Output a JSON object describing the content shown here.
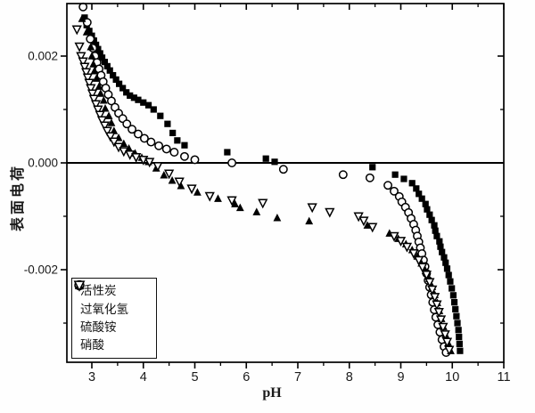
{
  "chart_data": {
    "type": "scatter",
    "title": "",
    "xlabel": "pH",
    "ylabel": "表面电荷",
    "xlim": [
      2.52,
      11.0
    ],
    "ylim": [
      -0.00373,
      0.00298
    ],
    "x_major_ticks": [
      3,
      4,
      5,
      6,
      7,
      8,
      9,
      10,
      11
    ],
    "x_minor_ticks": [
      3.5,
      4.5,
      5.5,
      6.5,
      7.5,
      8.5,
      9.5,
      10.5
    ],
    "y_major_ticks": [
      0.002,
      0.0,
      -0.002
    ],
    "y_major_tick_labels": [
      "0.002",
      "0.000",
      "-0.002"
    ],
    "y_minor_ticks": [
      0.001,
      -0.001,
      -0.003
    ],
    "grid": false,
    "zero_line": true,
    "legend_position": "lower-left",
    "marker_color": "#000000",
    "background_color": "#ffffff",
    "series": [
      {
        "id": "activated-carbon",
        "name": "活性炭",
        "marker": "square-filled",
        "points": [
          [
            2.86,
            0.00272
          ],
          [
            2.9,
            0.00258
          ],
          [
            2.95,
            0.00247
          ],
          [
            3.0,
            0.00238
          ],
          [
            3.04,
            0.00229
          ],
          [
            3.08,
            0.00221
          ],
          [
            3.12,
            0.00213
          ],
          [
            3.16,
            0.00205
          ],
          [
            3.2,
            0.00197
          ],
          [
            3.25,
            0.00189
          ],
          [
            3.3,
            0.00181
          ],
          [
            3.35,
            0.00173
          ],
          [
            3.41,
            0.00164
          ],
          [
            3.47,
            0.00156
          ],
          [
            3.53,
            0.00148
          ],
          [
            3.6,
            0.0014
          ],
          [
            3.67,
            0.00132
          ],
          [
            3.74,
            0.00126
          ],
          [
            3.82,
            0.00122
          ],
          [
            3.9,
            0.00118
          ],
          [
            4.0,
            0.00113
          ],
          [
            4.1,
            0.00108
          ],
          [
            4.2,
            0.001
          ],
          [
            4.33,
            0.00088
          ],
          [
            4.47,
            0.00073
          ],
          [
            4.57,
            0.00056
          ],
          [
            4.66,
            0.00042
          ],
          [
            4.8,
            0.00033
          ],
          [
            5.63,
            0.0002
          ],
          [
            6.38,
            8e-05
          ],
          [
            6.55,
            2e-05
          ],
          [
            8.45,
            -8e-05
          ],
          [
            8.89,
            -0.00022
          ],
          [
            9.06,
            -0.0003
          ],
          [
            9.22,
            -0.00038
          ],
          [
            9.3,
            -0.00048
          ],
          [
            9.35,
            -0.00058
          ],
          [
            9.41,
            -0.00067
          ],
          [
            9.48,
            -0.00077
          ],
          [
            9.51,
            -0.00087
          ],
          [
            9.56,
            -0.00097
          ],
          [
            9.6,
            -0.00107
          ],
          [
            9.65,
            -0.00117
          ],
          [
            9.67,
            -0.00127
          ],
          [
            9.7,
            -0.00137
          ],
          [
            9.75,
            -0.00147
          ],
          [
            9.77,
            -0.00157
          ],
          [
            9.8,
            -0.00167
          ],
          [
            9.84,
            -0.00177
          ],
          [
            9.87,
            -0.00187
          ],
          [
            9.9,
            -0.00198
          ],
          [
            9.93,
            -0.0021
          ],
          [
            9.96,
            -0.00222
          ],
          [
            9.99,
            -0.00235
          ],
          [
            10.02,
            -0.00248
          ],
          [
            10.04,
            -0.00261
          ],
          [
            10.06,
            -0.00274
          ],
          [
            10.08,
            -0.00287
          ],
          [
            10.1,
            -0.003
          ],
          [
            10.12,
            -0.00313
          ],
          [
            10.13,
            -0.00326
          ],
          [
            10.14,
            -0.00339
          ],
          [
            10.15,
            -0.00352
          ]
        ]
      },
      {
        "id": "hydrogen-peroxide",
        "name": "过氧化氢",
        "marker": "circle-open",
        "points": [
          [
            2.83,
            0.00292
          ],
          [
            2.91,
            0.00263
          ],
          [
            2.97,
            0.00232
          ],
          [
            3.02,
            0.00215
          ],
          [
            3.06,
            0.002
          ],
          [
            3.1,
            0.00188
          ],
          [
            3.14,
            0.00176
          ],
          [
            3.18,
            0.00164
          ],
          [
            3.22,
            0.00152
          ],
          [
            3.27,
            0.0014
          ],
          [
            3.32,
            0.00128
          ],
          [
            3.38,
            0.00116
          ],
          [
            3.45,
            0.00104
          ],
          [
            3.52,
            0.00093
          ],
          [
            3.6,
            0.00083
          ],
          [
            3.68,
            0.00073
          ],
          [
            3.78,
            0.00063
          ],
          [
            3.9,
            0.00054
          ],
          [
            4.02,
            0.00046
          ],
          [
            4.15,
            0.00039
          ],
          [
            4.3,
            0.00032
          ],
          [
            4.45,
            0.00026
          ],
          [
            4.6,
            0.0002
          ],
          [
            4.8,
            0.00012
          ],
          [
            5.0,
            6e-05
          ],
          [
            5.72,
            0.0
          ],
          [
            6.72,
            -0.00012
          ],
          [
            7.88,
            -0.00022
          ],
          [
            8.4,
            -0.00028
          ],
          [
            8.75,
            -0.00042
          ],
          [
            8.87,
            -0.00053
          ],
          [
            8.97,
            -0.00063
          ],
          [
            9.02,
            -0.00073
          ],
          [
            9.09,
            -0.00083
          ],
          [
            9.15,
            -0.00093
          ],
          [
            9.2,
            -0.00104
          ],
          [
            9.25,
            -0.00115
          ],
          [
            9.29,
            -0.00126
          ],
          [
            9.32,
            -0.00137
          ],
          [
            9.35,
            -0.00148
          ],
          [
            9.38,
            -0.00159
          ],
          [
            9.41,
            -0.0017
          ],
          [
            9.44,
            -0.00182
          ],
          [
            9.47,
            -0.00194
          ],
          [
            9.5,
            -0.00207
          ],
          [
            9.53,
            -0.0022
          ],
          [
            9.56,
            -0.00233
          ],
          [
            9.59,
            -0.00247
          ],
          [
            9.62,
            -0.00261
          ],
          [
            9.65,
            -0.00275
          ],
          [
            9.68,
            -0.00289
          ],
          [
            9.72,
            -0.00303
          ],
          [
            9.76,
            -0.00317
          ],
          [
            9.8,
            -0.00331
          ],
          [
            9.84,
            -0.00344
          ],
          [
            9.88,
            -0.00355
          ]
        ]
      },
      {
        "id": "ammonium-sulfate",
        "name": "硫酸铵",
        "marker": "triangle-up-filled",
        "points": [
          [
            2.81,
            0.0027
          ],
          [
            2.9,
            0.00245
          ],
          [
            2.98,
            0.00217
          ],
          [
            3.0,
            0.002
          ],
          [
            3.03,
            0.00185
          ],
          [
            3.05,
            0.00172
          ],
          [
            3.09,
            0.00158
          ],
          [
            3.14,
            0.00143
          ],
          [
            3.17,
            0.0013
          ],
          [
            3.23,
            0.00117
          ],
          [
            3.26,
            0.00102
          ],
          [
            3.33,
            0.00088
          ],
          [
            3.38,
            0.00075
          ],
          [
            3.43,
            0.0006
          ],
          [
            3.52,
            0.00047
          ],
          [
            3.62,
            0.00036
          ],
          [
            3.72,
            0.00027
          ],
          [
            3.84,
            0.00018
          ],
          [
            3.97,
            0.0001
          ],
          [
            4.1,
            2e-05
          ],
          [
            4.25,
            -0.0001
          ],
          [
            4.4,
            -0.00023
          ],
          [
            4.56,
            -0.00033
          ],
          [
            4.73,
            -0.00043
          ],
          [
            5.05,
            -0.00055
          ],
          [
            5.45,
            -0.00067
          ],
          [
            5.78,
            -0.00077
          ],
          [
            5.88,
            -0.00084
          ],
          [
            6.2,
            -0.00092
          ],
          [
            6.6,
            -0.00103
          ],
          [
            7.22,
            -0.00109
          ],
          [
            8.35,
            -0.00117
          ],
          [
            8.78,
            -0.00132
          ],
          [
            8.95,
            -0.00142
          ],
          [
            9.1,
            -0.00152
          ],
          [
            9.22,
            -0.00163
          ],
          [
            9.32,
            -0.00175
          ],
          [
            9.4,
            -0.00188
          ],
          [
            9.48,
            -0.00202
          ],
          [
            9.55,
            -0.00217
          ],
          [
            9.61,
            -0.00232
          ],
          [
            9.66,
            -0.00247
          ],
          [
            9.71,
            -0.00262
          ],
          [
            9.75,
            -0.00277
          ],
          [
            9.79,
            -0.00292
          ],
          [
            9.83,
            -0.00307
          ],
          [
            9.87,
            -0.00322
          ],
          [
            9.92,
            -0.00337
          ],
          [
            9.97,
            -0.00352
          ]
        ]
      },
      {
        "id": "nitric-acid",
        "name": "硝酸",
        "marker": "triangle-down-open",
        "points": [
          [
            2.71,
            0.0025
          ],
          [
            2.76,
            0.00218
          ],
          [
            2.79,
            0.002
          ],
          [
            2.83,
            0.0019
          ],
          [
            2.86,
            0.0018
          ],
          [
            2.89,
            0.0017
          ],
          [
            2.92,
            0.0016
          ],
          [
            2.95,
            0.0015
          ],
          [
            2.98,
            0.0014
          ],
          [
            3.01,
            0.0013
          ],
          [
            3.04,
            0.0012
          ],
          [
            3.08,
            0.0011
          ],
          [
            3.12,
            0.001
          ],
          [
            3.16,
            0.0009
          ],
          [
            3.2,
            0.0008
          ],
          [
            3.25,
            0.0007
          ],
          [
            3.3,
            0.0006
          ],
          [
            3.36,
            0.0005
          ],
          [
            3.43,
            0.0004
          ],
          [
            3.52,
            0.0003
          ],
          [
            3.62,
            0.00022
          ],
          [
            3.74,
            0.00016
          ],
          [
            3.86,
            0.00011
          ],
          [
            4.0,
            6e-05
          ],
          [
            4.12,
            2e-05
          ],
          [
            4.28,
            -6e-05
          ],
          [
            4.5,
            -0.0002
          ],
          [
            4.7,
            -0.00035
          ],
          [
            4.94,
            -0.00048
          ],
          [
            5.29,
            -0.00062
          ],
          [
            5.72,
            -0.0007
          ],
          [
            6.32,
            -0.00075
          ],
          [
            7.28,
            -0.00083
          ],
          [
            7.62,
            -0.00092
          ],
          [
            8.18,
            -0.001
          ],
          [
            8.28,
            -0.00108
          ],
          [
            8.45,
            -0.0012
          ],
          [
            8.87,
            -0.00137
          ],
          [
            9.0,
            -0.00146
          ],
          [
            9.12,
            -0.00157
          ],
          [
            9.25,
            -0.00169
          ],
          [
            9.35,
            -0.00182
          ],
          [
            9.42,
            -0.00195
          ],
          [
            9.5,
            -0.00209
          ],
          [
            9.56,
            -0.00223
          ],
          [
            9.61,
            -0.00237
          ],
          [
            9.66,
            -0.00251
          ],
          [
            9.7,
            -0.00265
          ],
          [
            9.74,
            -0.00279
          ],
          [
            9.78,
            -0.00293
          ],
          [
            9.82,
            -0.00307
          ],
          [
            9.86,
            -0.00321
          ],
          [
            9.9,
            -0.00335
          ],
          [
            9.94,
            -0.0035
          ]
        ]
      }
    ]
  }
}
